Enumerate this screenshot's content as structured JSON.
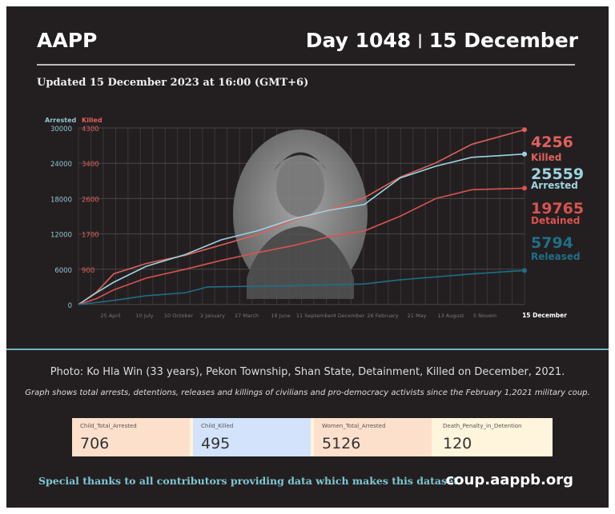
{
  "header": {
    "org": "AAPP",
    "day": "Day 1048",
    "date": "15 December",
    "updated": "Updated 15 December 2023 at 16:00 (GMT+6)"
  },
  "chart_data": {
    "type": "line",
    "left_axis_label": "Arrested",
    "right_axis_label": "Killed",
    "left_ticks": [
      "0",
      "6000",
      "12000",
      "18000",
      "24000",
      "30000"
    ],
    "right_ticks": [
      "900",
      "1700",
      "2600",
      "3400",
      "4300"
    ],
    "ylim_left": [
      0,
      30000
    ],
    "ylim_right": [
      0,
      4300
    ],
    "x_ticks": [
      "25 April",
      "10 July",
      "10 October",
      "2 January",
      "27 March",
      "19 June",
      "11 September",
      "4 December",
      "26 February",
      "21 May",
      "13 August",
      "5 Novem",
      "15 December"
    ],
    "xlim": [
      "2021-02-01",
      "2023-12-15"
    ],
    "grid": true,
    "colors": {
      "killed": "#e0605c",
      "arrested": "#9dd3e0",
      "detained": "#d9534f",
      "released": "#1f6f86"
    },
    "series": [
      {
        "name": "Killed",
        "axis": "right",
        "end_label": "4256",
        "color": "#e0605c",
        "points": [
          [
            "2021-02-01",
            0
          ],
          [
            "2021-03-15",
            300
          ],
          [
            "2021-04-25",
            750
          ],
          [
            "2021-07-10",
            1000
          ],
          [
            "2021-10-10",
            1200
          ],
          [
            "2022-01-02",
            1450
          ],
          [
            "2022-03-27",
            1700
          ],
          [
            "2022-06-19",
            2050
          ],
          [
            "2022-09-11",
            2300
          ],
          [
            "2022-12-04",
            2600
          ],
          [
            "2023-02-26",
            3100
          ],
          [
            "2023-05-21",
            3450
          ],
          [
            "2023-08-13",
            3900
          ],
          [
            "2023-12-15",
            4256
          ]
        ]
      },
      {
        "name": "Arrested",
        "axis": "left",
        "end_label": "25559",
        "color": "#9dd3e0",
        "points": [
          [
            "2021-02-01",
            0
          ],
          [
            "2021-03-15",
            2000
          ],
          [
            "2021-04-25",
            3800
          ],
          [
            "2021-07-10",
            6500
          ],
          [
            "2021-10-10",
            8500
          ],
          [
            "2022-01-02",
            11000
          ],
          [
            "2022-03-27",
            12500
          ],
          [
            "2022-06-19",
            14500
          ],
          [
            "2022-09-11",
            16000
          ],
          [
            "2022-12-04",
            17000
          ],
          [
            "2023-02-26",
            21500
          ],
          [
            "2023-05-21",
            23500
          ],
          [
            "2023-08-13",
            25000
          ],
          [
            "2023-12-15",
            25559
          ]
        ]
      },
      {
        "name": "Detained",
        "axis": "left",
        "end_label": "19765",
        "color": "#d9534f",
        "points": [
          [
            "2021-02-01",
            0
          ],
          [
            "2021-03-15",
            1000
          ],
          [
            "2021-04-25",
            2500
          ],
          [
            "2021-07-10",
            4500
          ],
          [
            "2021-10-10",
            6000
          ],
          [
            "2022-01-02",
            7500
          ],
          [
            "2022-03-27",
            8800
          ],
          [
            "2022-06-19",
            10000
          ],
          [
            "2022-09-11",
            11500
          ],
          [
            "2022-12-04",
            12500
          ],
          [
            "2023-02-26",
            15000
          ],
          [
            "2023-05-21",
            18000
          ],
          [
            "2023-08-13",
            19500
          ],
          [
            "2023-12-15",
            19765
          ]
        ]
      },
      {
        "name": "Released",
        "axis": "left",
        "end_label": "5794",
        "color": "#1f6f86",
        "points": [
          [
            "2021-02-01",
            0
          ],
          [
            "2021-04-25",
            700
          ],
          [
            "2021-07-10",
            1500
          ],
          [
            "2021-10-10",
            2000
          ],
          [
            "2021-12-01",
            3000
          ],
          [
            "2022-06-19",
            3200
          ],
          [
            "2022-12-04",
            3500
          ],
          [
            "2023-02-26",
            4200
          ],
          [
            "2023-08-13",
            5200
          ],
          [
            "2023-12-15",
            5794
          ]
        ]
      }
    ]
  },
  "caption": "Photo: Ko Hla Win (33 years), Pekon Township, Shan State, Detainment, Killed on December, 2021.",
  "note": "Graph shows total arrests, detentions, releases and killings of civilians and pro-democracy activists since the February 1,2021 military coup.",
  "stats": [
    {
      "label": "Child_Total_Arrested",
      "value": "706",
      "color": "#fde0cc"
    },
    {
      "label": "Child_Killed",
      "value": "495",
      "color": "#d3e3fb"
    },
    {
      "label": "Women_Total_Arrested",
      "value": "5126",
      "color": "#fde0cc"
    },
    {
      "label": "Death_Penalty_in_Detention",
      "value": "120",
      "color": "#fff4dc"
    }
  ],
  "footer": {
    "thanks": "Special thanks to all contributors providing data which makes this dataset.",
    "site": "coup.aappb.org"
  }
}
